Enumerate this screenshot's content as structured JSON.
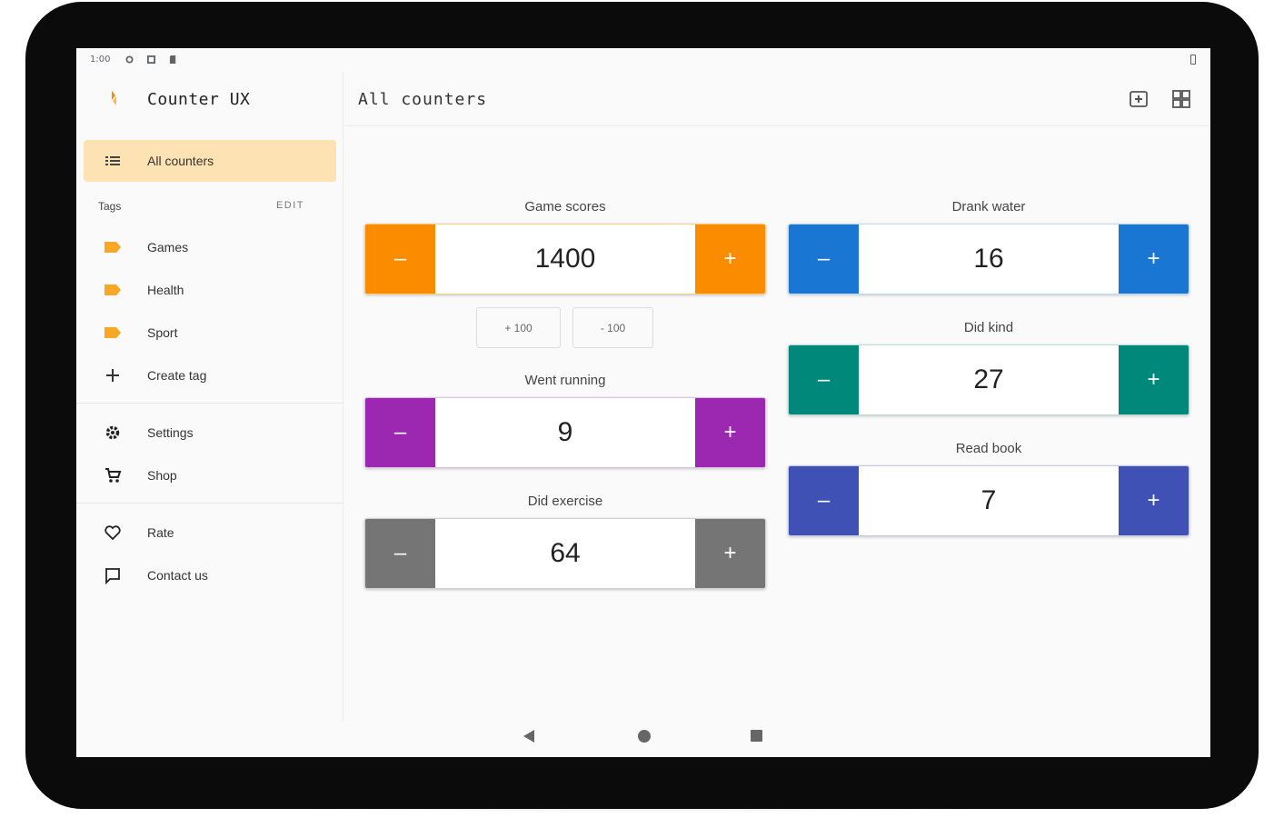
{
  "status": {
    "time": "1:00"
  },
  "app": {
    "title": "Counter UX"
  },
  "nav": {
    "all_counters": "All counters",
    "tags_header": "Tags",
    "tags_edit": "EDIT",
    "tags": [
      {
        "label": "Games"
      },
      {
        "label": "Health"
      },
      {
        "label": "Sport"
      }
    ],
    "create_tag": "Create tag",
    "settings": "Settings",
    "shop": "Shop",
    "rate": "Rate",
    "contact": "Contact us"
  },
  "main": {
    "title": "All counters",
    "step_buttons": {
      "plus": "+ 100",
      "minus": "- 100"
    }
  },
  "counters": [
    {
      "name": "Game scores",
      "value": "1400",
      "color": "#fb8c00"
    },
    {
      "name": "Went running",
      "value": "9",
      "color": "#9c27b0"
    },
    {
      "name": "Did exercise",
      "value": "64",
      "color": "#757575"
    },
    {
      "name": "Drank water",
      "value": "16",
      "color": "#1976d2"
    },
    {
      "name": "Did kind",
      "value": "27",
      "color": "#00897b"
    },
    {
      "name": "Read book",
      "value": "7",
      "color": "#3f51b5"
    }
  ],
  "buttons": {
    "minus": "–",
    "plus": "+"
  },
  "colors": {
    "accent": "#fb8c00",
    "active_nav_bg": "#fde2b4",
    "tag": "#f9a825"
  }
}
